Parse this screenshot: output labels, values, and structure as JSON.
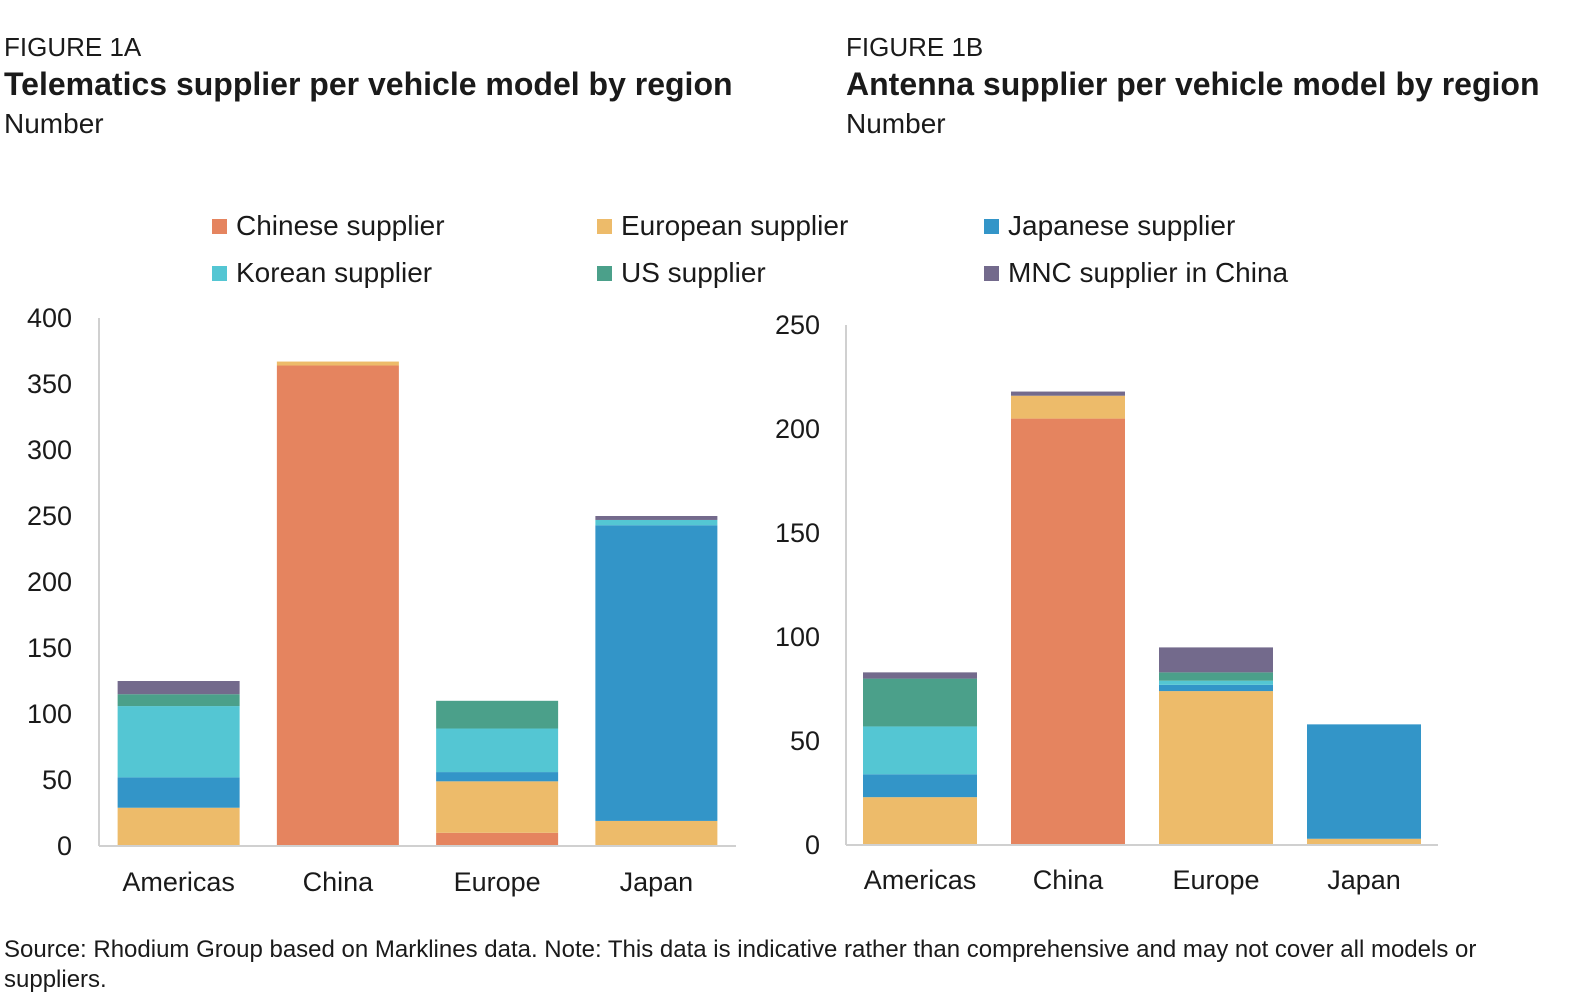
{
  "figures": {
    "a": {
      "label": "FIGURE 1A",
      "title": "Telematics supplier per vehicle model by region",
      "unit": "Number"
    },
    "b": {
      "label": "FIGURE 1B",
      "title": "Antenna supplier per vehicle model by region",
      "unit": "Number"
    }
  },
  "legend": [
    {
      "name": "Chinese supplier",
      "color": "#E5845F"
    },
    {
      "name": "European supplier",
      "color": "#EDBB6A"
    },
    {
      "name": "Japanese supplier",
      "color": "#3395C8"
    },
    {
      "name": "Korean supplier",
      "color": "#54C6D3"
    },
    {
      "name": "US supplier",
      "color": "#4BA08A"
    },
    {
      "name": "MNC supplier in China",
      "color": "#736A8C"
    }
  ],
  "chart_data": [
    {
      "type": "bar",
      "stacked": true,
      "title": "Telematics supplier per vehicle model by region",
      "ylabel": "Number",
      "categories": [
        "Americas",
        "China",
        "Europe",
        "Japan"
      ],
      "ylim": [
        0,
        400
      ],
      "yticks": [
        "0",
        "50",
        "100",
        "150",
        "200",
        "250",
        "300",
        "350",
        "400"
      ],
      "series": [
        {
          "name": "Chinese supplier",
          "values": [
            0,
            364,
            10,
            0
          ]
        },
        {
          "name": "European supplier",
          "values": [
            29,
            3,
            39,
            19
          ]
        },
        {
          "name": "Japanese supplier",
          "values": [
            23,
            0,
            7,
            224
          ]
        },
        {
          "name": "Korean supplier",
          "values": [
            54,
            0,
            33,
            4
          ]
        },
        {
          "name": "US supplier",
          "values": [
            9,
            0,
            21,
            0
          ]
        },
        {
          "name": "MNC supplier in China",
          "values": [
            10,
            0,
            0,
            3
          ]
        }
      ]
    },
    {
      "type": "bar",
      "stacked": true,
      "title": "Antenna supplier per vehicle model by region",
      "ylabel": "Number",
      "categories": [
        "Americas",
        "China",
        "Europe",
        "Japan"
      ],
      "ylim": [
        0,
        250
      ],
      "yticks": [
        "0",
        "50",
        "100",
        "150",
        "200",
        "250"
      ],
      "series": [
        {
          "name": "Chinese supplier",
          "values": [
            0,
            205,
            0,
            0
          ]
        },
        {
          "name": "European supplier",
          "values": [
            23,
            11,
            74,
            3
          ]
        },
        {
          "name": "Japanese supplier",
          "values": [
            11,
            0,
            3,
            55
          ]
        },
        {
          "name": "Korean supplier",
          "values": [
            23,
            0,
            2,
            0
          ]
        },
        {
          "name": "US supplier",
          "values": [
            23,
            0,
            4,
            0
          ]
        },
        {
          "name": "MNC supplier in China",
          "values": [
            3,
            2,
            12,
            0
          ]
        }
      ]
    }
  ],
  "source": "Source: Rhodium Group based on Marklines data. Note: This data is indicative rather than comprehensive and may not cover all models or suppliers."
}
